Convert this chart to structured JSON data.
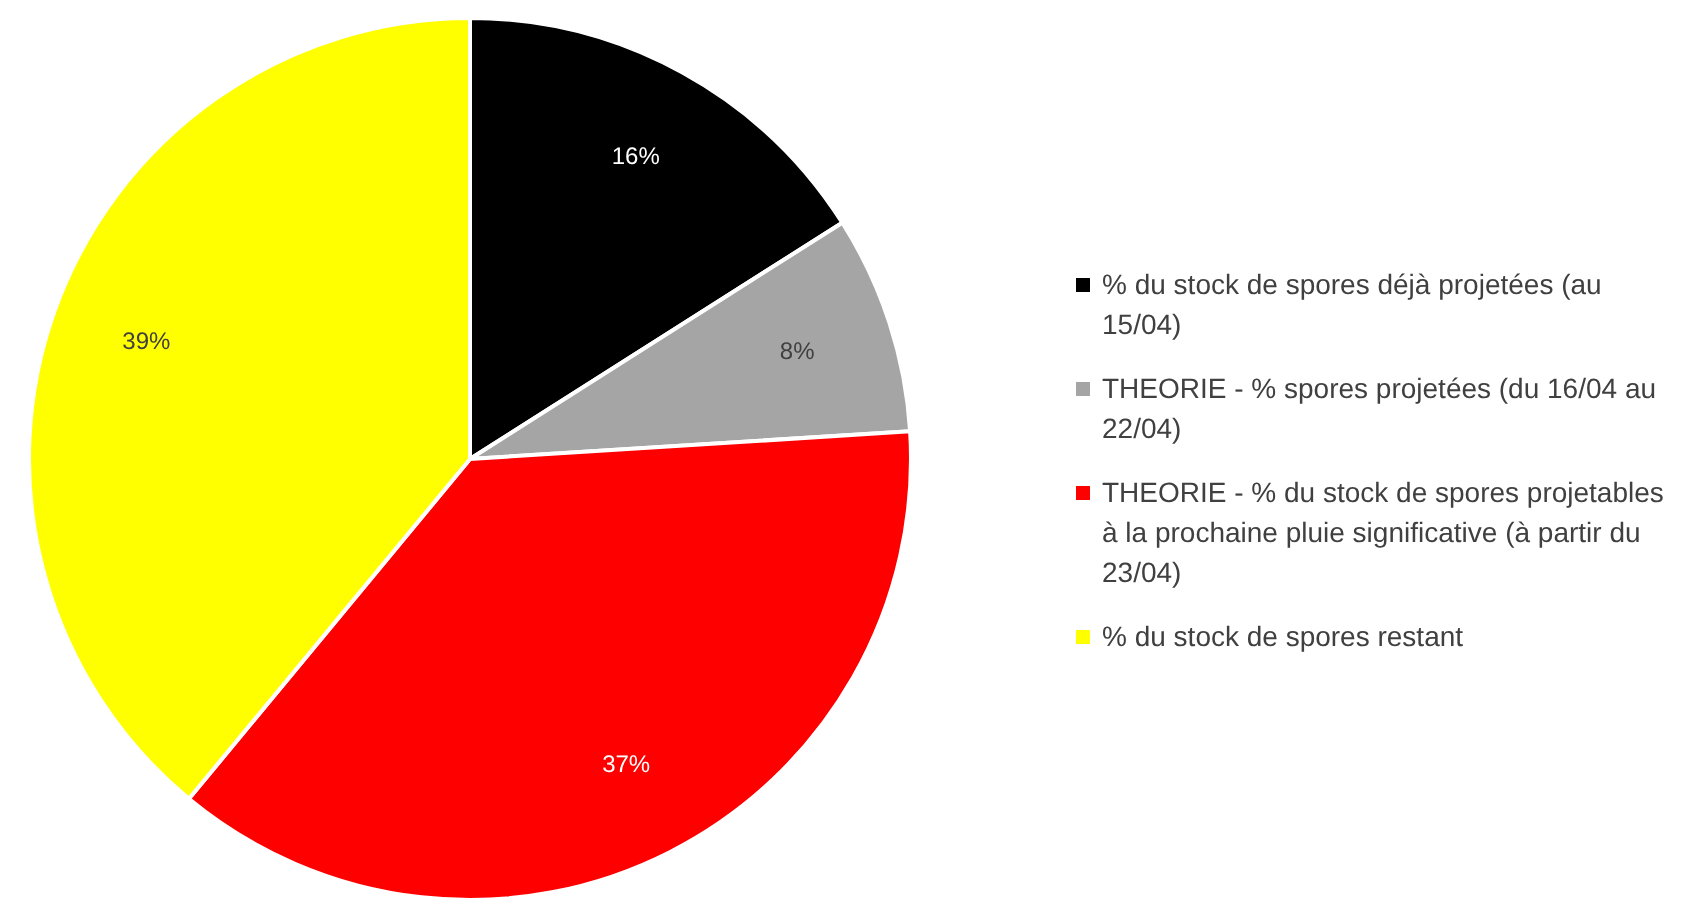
{
  "chart_data": {
    "type": "pie",
    "categories": [
      "% du stock de spores déjà projetées (au 15/04)",
      "THEORIE - % spores projetées (du 16/04 au 22/04)",
      "THEORIE - % du stock de spores projetables à la prochaine pluie significative (à partir du 23/04)",
      "% du stock de spores restant"
    ],
    "values": [
      16,
      8,
      37,
      39
    ],
    "colors": [
      "#000000",
      "#a5a5a5",
      "#ff0000",
      "#ffff00"
    ],
    "value_labels": [
      "16%",
      "8%",
      "37%",
      "39%"
    ],
    "legend": "right"
  }
}
